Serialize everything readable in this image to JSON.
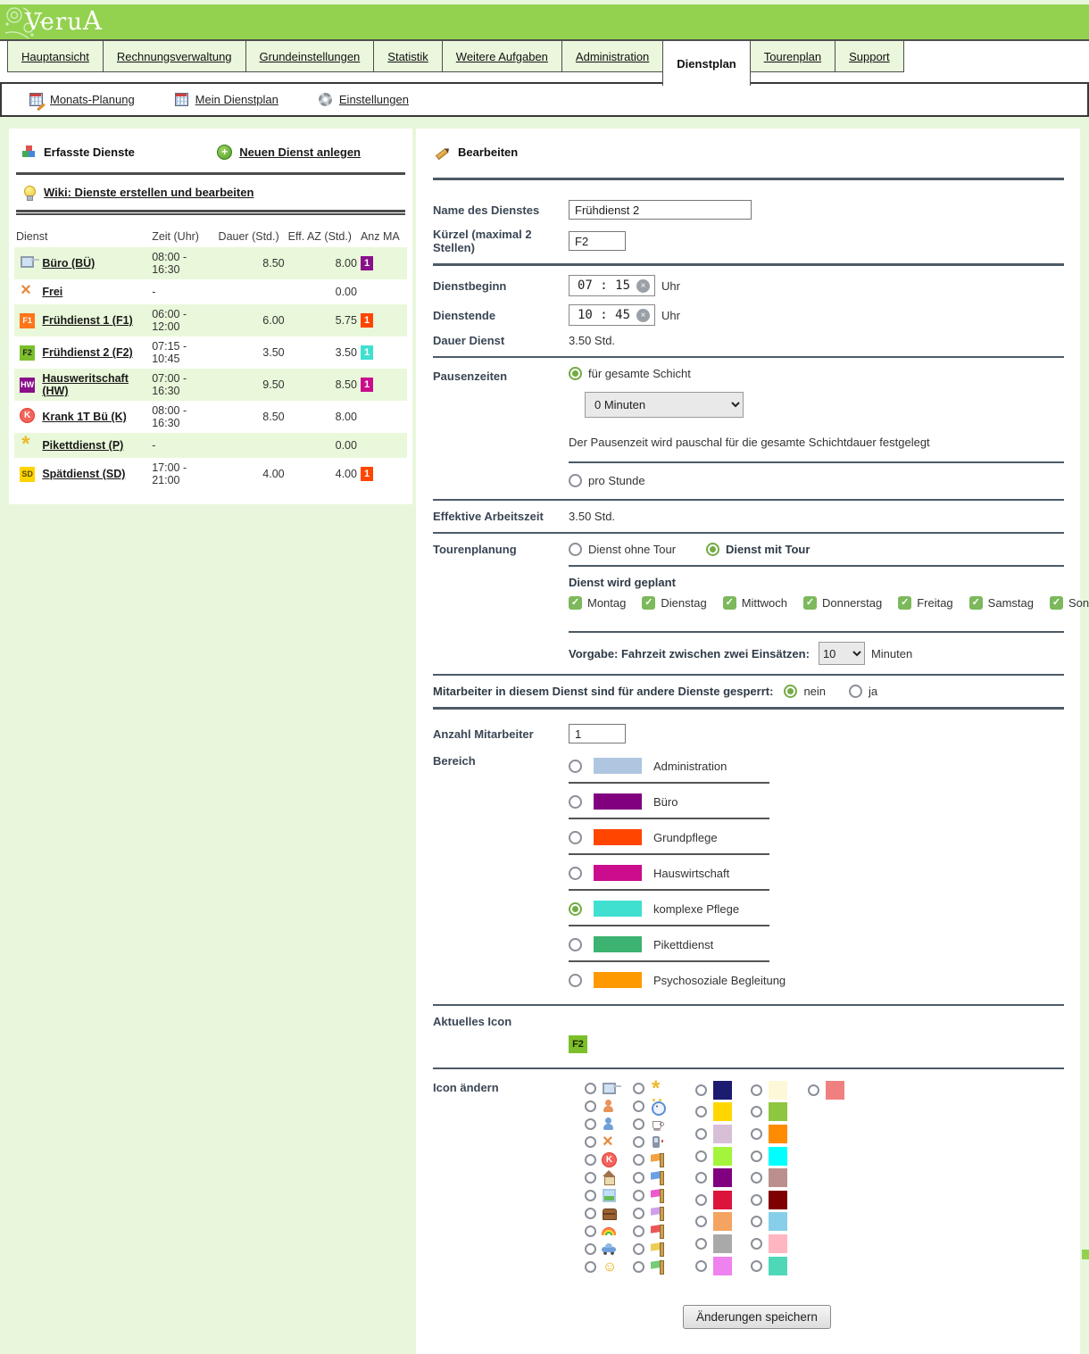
{
  "logo": {
    "text": "Veru",
    "a": "A"
  },
  "tabs": {
    "items": [
      {
        "label": "Hauptansicht",
        "active": false
      },
      {
        "label": "Rechnungsverwaltung",
        "active": false
      },
      {
        "label": "Grundeinstellungen",
        "active": false
      },
      {
        "label": "Statistik",
        "active": false
      },
      {
        "label": "Weitere Aufgaben",
        "active": false
      },
      {
        "label": "Administration",
        "active": false
      },
      {
        "label": "Dienstplan",
        "active": true
      },
      {
        "label": "Tourenplan",
        "active": false
      },
      {
        "label": "Support",
        "active": false
      }
    ]
  },
  "toolbar": {
    "items": [
      {
        "icon": "calendar-edit-icon",
        "label": "Monats-Planung"
      },
      {
        "icon": "calendar-icon",
        "label": "Mein Dienstplan"
      },
      {
        "icon": "gear-icon",
        "label": "Einstellungen"
      }
    ]
  },
  "services_panel": {
    "title": "Erfasste Dienste",
    "new_link": "Neuen Dienst anlegen",
    "wiki_link": "Wiki: Dienste erstellen und bearbeiten",
    "columns": [
      "Dienst",
      "Zeit (Uhr)",
      "Dauer (Std.)",
      "Eff. AZ (Std.)",
      "Anz MA"
    ],
    "rows": [
      {
        "icon": "computer-icon",
        "name": "Büro (BÜ)",
        "zeit": "08:00 - 16:30",
        "dauer": "8.50",
        "eff": "8.00",
        "badge": "1",
        "badge_color": "#8a0f8a"
      },
      {
        "icon": "x-icon",
        "name": "Frei",
        "zeit": "-",
        "dauer": "",
        "eff": "0.00",
        "badge": "",
        "badge_color": ""
      },
      {
        "icon": "f1-icon",
        "name": "Frühdienst 1 (F1)",
        "zeit": "06:00 - 12:00",
        "dauer": "6.00",
        "eff": "5.75",
        "badge": "1",
        "badge_color": "#ff4500"
      },
      {
        "icon": "f2-icon",
        "name": "Frühdienst 2 (F2)",
        "zeit": "07:15 - 10:45",
        "dauer": "3.50",
        "eff": "3.50",
        "badge": "1",
        "badge_color": "#40e0d0"
      },
      {
        "icon": "hw-icon",
        "name": "Hausweritschaft (HW)",
        "zeit": "07:00 - 16:30",
        "dauer": "9.50",
        "eff": "8.50",
        "badge": "1",
        "badge_color": "#cb0c8c"
      },
      {
        "icon": "k-circle-icon",
        "name": "Krank 1T Bü (K)",
        "zeit": "08:00 - 16:30",
        "dauer": "8.50",
        "eff": "8.00",
        "badge": "",
        "badge_color": ""
      },
      {
        "icon": "asterisk-icon",
        "name": "Pikettdienst (P)",
        "zeit": "-",
        "dauer": "",
        "eff": "0.00",
        "badge": "",
        "badge_color": ""
      },
      {
        "icon": "sd-icon",
        "name": "Spätdienst (SD)",
        "zeit": "17:00 - 21:00",
        "dauer": "4.00",
        "eff": "4.00",
        "badge": "1",
        "badge_color": "#ff4500"
      }
    ]
  },
  "editor": {
    "title": "Bearbeiten",
    "name_label": "Name des Dienstes",
    "name_value": "Frühdienst 2",
    "kuerzel_label": "Kürzel (maximal 2 Stellen)",
    "kuerzel_value": "F2",
    "begin_label": "Dienstbeginn",
    "begin_value": "07 : 15",
    "end_label": "Dienstende",
    "end_value": "10 : 45",
    "uhr": "Uhr",
    "dauer_label": "Dauer Dienst",
    "dauer_value": "3.50 Std.",
    "pause": {
      "label": "Pausenzeiten",
      "opt1": "für gesamte Schicht",
      "select_value": "0 Minuten",
      "note": "Der Pausenzeit wird pauschal für die gesamte Schichtdauer festgelegt",
      "opt2": "pro Stunde"
    },
    "eff_label": "Effektive Arbeitszeit",
    "eff_value": "3.50 Std.",
    "tour": {
      "label": "Tourenplanung",
      "opt1": "Dienst ohne Tour",
      "opt2": "Dienst mit Tour",
      "planned_label": "Dienst wird geplant",
      "days": [
        "Montag",
        "Dienstag",
        "Mittwoch",
        "Donnerstag",
        "Freitag",
        "Samstag",
        "Sonntag"
      ],
      "fahrzeit_label": "Vorgabe: Fahrzeit zwischen zwei Einsätzen:",
      "fahrzeit_value": "10",
      "fahrzeit_unit": "Minuten"
    },
    "gesperrt": {
      "label": "Mitarbeiter in diesem Dienst sind für andere Dienste gesperrt:",
      "opt1": "nein",
      "opt2": "ja"
    },
    "anzahl_label": "Anzahl Mitarbeiter",
    "anzahl_value": "1",
    "bereich": {
      "label": "Bereich",
      "options": [
        {
          "label": "Administration",
          "color": "#aec6e0",
          "selected": false
        },
        {
          "label": "Büro",
          "color": "#800080",
          "selected": false
        },
        {
          "label": "Grundpflege",
          "color": "#ff4500",
          "selected": false
        },
        {
          "label": "Hauswirtschaft",
          "color": "#cb0c8c",
          "selected": false
        },
        {
          "label": "komplexe Pflege",
          "color": "#40e0d0",
          "selected": true
        },
        {
          "label": "Pikettdienst",
          "color": "#3cb371",
          "selected": false
        },
        {
          "label": "Psychosoziale Begleitung",
          "color": "#ff9900",
          "selected": false
        }
      ]
    },
    "aktuelles_icon_label": "Aktuelles Icon",
    "aktuelles_icon_value": "F2",
    "aktuelles_icon_color": "#7cbf2a",
    "icon_aendern_label": "Icon ändern",
    "icon_grid": {
      "icons_col1": [
        "computer-icon",
        "person-clock-orange-icon",
        "person-clock-blue-icon",
        "x-icon",
        "k-circle-icon",
        "house-icon",
        "picture-icon",
        "chest-icon",
        "rainbow-icon",
        "car-icon",
        "smiley-icon"
      ],
      "icons_col2": [
        "asterisk-icon",
        "alarm-clock-icon",
        "coffee-icon",
        "phone-icon",
        "flag-orange-icon",
        "flag-blue-icon",
        "flag-magenta-icon",
        "flag-lavender-icon",
        "flag-red-icon",
        "flag-yellow-icon",
        "flag-green-icon"
      ],
      "colors_col3": [
        "#1b1b6f",
        "#ffd700",
        "#d8bfd8",
        "#a4f43c",
        "#800080",
        "#dc143c",
        "#f4a460",
        "#a9a9a9",
        "#ee82ee"
      ],
      "colors_col4": [
        "#fdf8d7",
        "#8dc63f",
        "#ff8c00",
        "#00ffff",
        "#bc8f8f",
        "#7e0000",
        "#87ceeb",
        "#ffb6c1",
        "#4fd8b8"
      ],
      "colors_col5": [
        "#f08080"
      ]
    },
    "save_button": "Änderungen speichern"
  }
}
